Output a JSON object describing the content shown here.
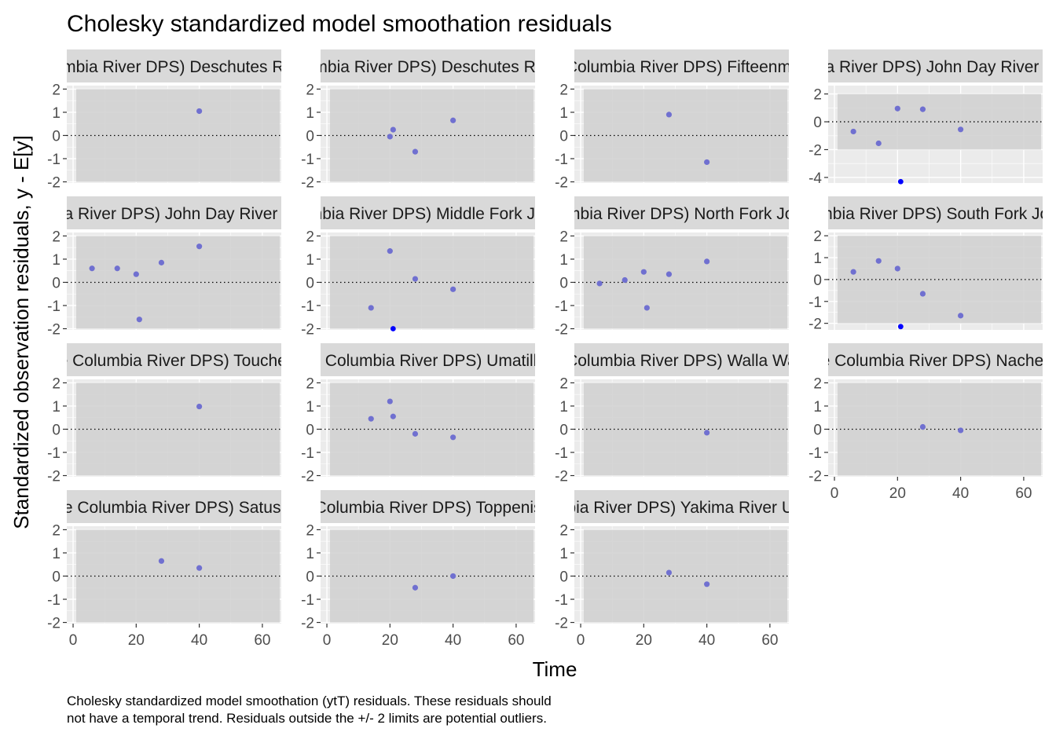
{
  "chart_data": {
    "type": "scatter",
    "title": "Cholesky standardized model smoothation residuals",
    "xlabel": "Time",
    "ylabel": "Standardized observation residuals, y - E[y]",
    "caption": "Cholesky standardized model smoothation (ytT) residuals. These residuals should not have a temporal trend. Residuals outside the +/- 2 limits are potential outliers.",
    "xlim": [
      -2,
      66
    ],
    "x_ticks": [
      0,
      20,
      40,
      60
    ],
    "band": [
      -2,
      2
    ],
    "reference_line": 0,
    "grid": true,
    "colors": {
      "panel_bg": "#ebebeb",
      "band": "#d0d0d0",
      "strip_bg": "#d9d9d9",
      "point": "#7070d0",
      "outlier": "#0000ff",
      "grid": "#ffffff"
    },
    "panels": [
      {
        "label": "(Middle Columbia River DPS) Deschutes River Eastside",
        "ylim": [
          -2.05,
          2.15
        ],
        "y_ticks": [
          -2,
          -1,
          0,
          1,
          2
        ],
        "points": [
          [
            40,
            1.05
          ]
        ],
        "outliers": []
      },
      {
        "label": "(Middle Columbia River DPS) Deschutes River Westside",
        "ylim": [
          -2.05,
          2.15
        ],
        "y_ticks": [
          -2,
          -1,
          0,
          1,
          2
        ],
        "points": [
          [
            20,
            -0.05
          ],
          [
            21,
            0.25
          ],
          [
            28,
            -0.7
          ],
          [
            40,
            0.65
          ]
        ],
        "outliers": []
      },
      {
        "label": "(Middle Columbia River DPS) Fifteenmile Creek",
        "ylim": [
          -2.05,
          2.15
        ],
        "y_ticks": [
          -2,
          -1,
          0,
          1,
          2
        ],
        "points": [
          [
            28,
            0.9
          ],
          [
            40,
            -1.15
          ]
        ],
        "outliers": []
      },
      {
        "label": "(Middle Columbia River DPS) John Day River Lower Mainstem",
        "ylim": [
          -4.4,
          2.6
        ],
        "y_ticks": [
          -4,
          -2,
          0,
          2
        ],
        "points": [
          [
            6,
            -0.7
          ],
          [
            14,
            -1.55
          ],
          [
            20,
            0.95
          ],
          [
            28,
            0.9
          ],
          [
            40,
            -0.55
          ]
        ],
        "outliers": [
          [
            21,
            -4.3
          ]
        ]
      },
      {
        "label": "(Middle Columbia River DPS) John Day River Upper Mainstem",
        "ylim": [
          -2.05,
          2.15
        ],
        "y_ticks": [
          -2,
          -1,
          0,
          1,
          2
        ],
        "points": [
          [
            6,
            0.6
          ],
          [
            14,
            0.6
          ],
          [
            20,
            0.35
          ],
          [
            21,
            -1.6
          ],
          [
            28,
            0.85
          ],
          [
            40,
            1.55
          ]
        ],
        "outliers": []
      },
      {
        "label": "(Middle Columbia River DPS) Middle Fork John Day River",
        "ylim": [
          -2.05,
          2.15
        ],
        "y_ticks": [
          -2,
          -1,
          0,
          1,
          2
        ],
        "points": [
          [
            14,
            -1.1
          ],
          [
            20,
            1.35
          ],
          [
            28,
            0.15
          ],
          [
            40,
            -0.3
          ]
        ],
        "outliers": [
          [
            21,
            -2.0
          ]
        ]
      },
      {
        "label": "(Middle Columbia River DPS) North Fork John Day River",
        "ylim": [
          -2.05,
          2.15
        ],
        "y_ticks": [
          -2,
          -1,
          0,
          1,
          2
        ],
        "points": [
          [
            6,
            -0.05
          ],
          [
            14,
            0.1
          ],
          [
            20,
            0.45
          ],
          [
            21,
            -1.1
          ],
          [
            28,
            0.35
          ],
          [
            40,
            0.9
          ]
        ],
        "outliers": []
      },
      {
        "label": "(Middle Columbia River DPS) South Fork John Day River",
        "ylim": [
          -2.3,
          2.15
        ],
        "y_ticks": [
          -2,
          -1,
          0,
          1,
          2
        ],
        "points": [
          [
            6,
            0.35
          ],
          [
            14,
            0.85
          ],
          [
            20,
            0.5
          ],
          [
            28,
            -0.65
          ],
          [
            40,
            -1.65
          ]
        ],
        "outliers": [
          [
            21,
            -2.15
          ]
        ]
      },
      {
        "label": "(Middle Columbia River DPS) Touchet River",
        "ylim": [
          -2.05,
          2.15
        ],
        "y_ticks": [
          -2,
          -1,
          0,
          1,
          2
        ],
        "points": [
          [
            40,
            0.98
          ]
        ],
        "outliers": []
      },
      {
        "label": "(Middle Columbia River DPS) Umatilla River",
        "ylim": [
          -2.05,
          2.15
        ],
        "y_ticks": [
          -2,
          -1,
          0,
          1,
          2
        ],
        "points": [
          [
            14,
            0.45
          ],
          [
            20,
            1.2
          ],
          [
            21,
            0.55
          ],
          [
            28,
            -0.2
          ],
          [
            40,
            -0.35
          ]
        ],
        "outliers": []
      },
      {
        "label": "(Middle Columbia River DPS) Walla Walla River",
        "ylim": [
          -2.05,
          2.15
        ],
        "y_ticks": [
          -2,
          -1,
          0,
          1,
          2
        ],
        "points": [
          [
            40,
            -0.15
          ]
        ],
        "outliers": []
      },
      {
        "label": "(Middle Columbia River DPS) Naches River",
        "ylim": [
          -2.05,
          2.15
        ],
        "y_ticks": [
          -2,
          -1,
          0,
          1,
          2
        ],
        "points": [
          [
            28,
            0.1
          ],
          [
            40,
            -0.05
          ]
        ],
        "outliers": []
      },
      {
        "label": "(Middle Columbia River DPS) Satus Creek",
        "ylim": [
          -2.05,
          2.15
        ],
        "y_ticks": [
          -2,
          -1,
          0,
          1,
          2
        ],
        "points": [
          [
            28,
            0.65
          ],
          [
            40,
            0.35
          ]
        ],
        "outliers": []
      },
      {
        "label": "(Middle Columbia River DPS) Toppenish Creek",
        "ylim": [
          -2.05,
          2.15
        ],
        "y_ticks": [
          -2,
          -1,
          0,
          1,
          2
        ],
        "points": [
          [
            28,
            -0.5
          ],
          [
            40,
            0.0
          ]
        ],
        "outliers": []
      },
      {
        "label": "(Middle Columbia River DPS) Yakima River Upper Mainstem",
        "ylim": [
          -2.05,
          2.15
        ],
        "y_ticks": [
          -2,
          -1,
          0,
          1,
          2
        ],
        "points": [
          [
            28,
            0.15
          ],
          [
            40,
            -0.35
          ]
        ],
        "outliers": []
      }
    ]
  }
}
